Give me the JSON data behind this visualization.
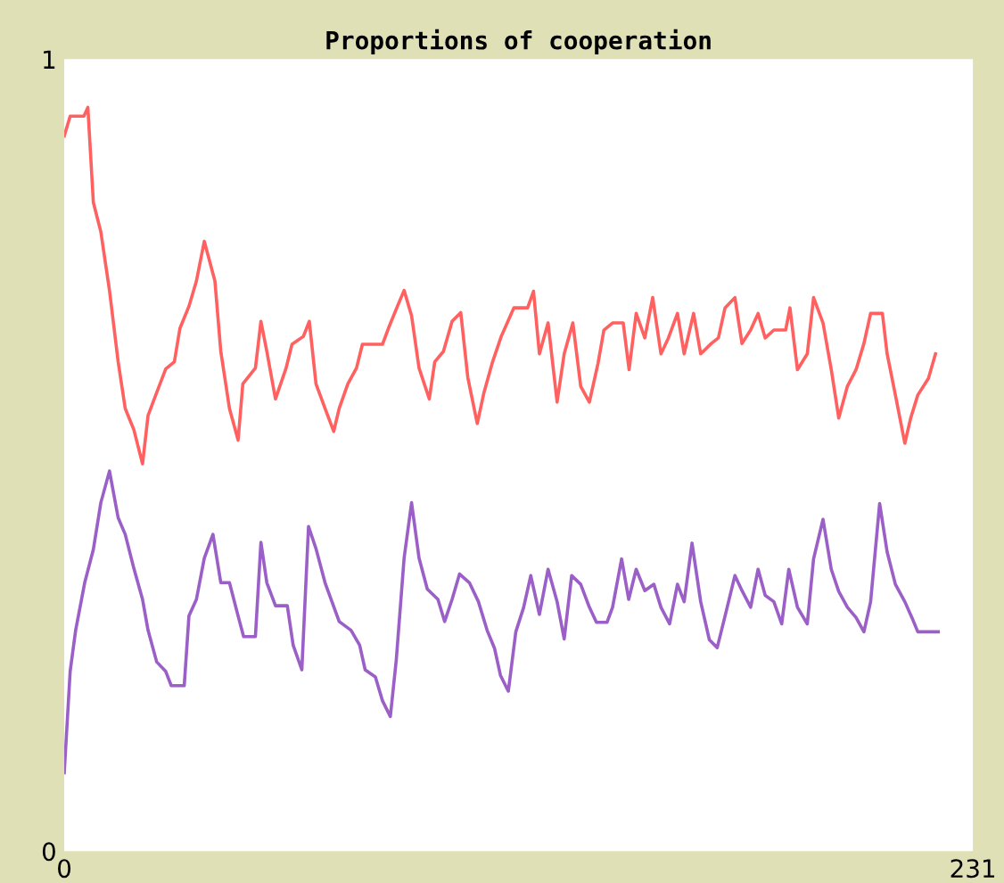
{
  "chart_data": {
    "type": "line",
    "title": "Proportions of cooperation",
    "xlim": [
      0,
      231
    ],
    "xticks": [
      0,
      231
    ],
    "ylim": [
      0,
      1
    ],
    "yticks": [
      0,
      1
    ],
    "grid": false,
    "marker": "none",
    "line_style": "solid",
    "series": [
      {
        "color": "#ff6060",
        "x": [
          0,
          1.5,
          5,
          6,
          7.4,
          9.3,
          11.5,
          13.7,
          15.5,
          17.7,
          19.9,
          21.3,
          23.5,
          25.8,
          28,
          29.4,
          31.7,
          33.6,
          35.6,
          38.3,
          39.8,
          42,
          44.2,
          45.4,
          48.6,
          50,
          51.5,
          53.7,
          56.4,
          57.9,
          60.8,
          62.3,
          64,
          66.3,
          68.5,
          69.9,
          72.1,
          74.3,
          75.8,
          80.9,
          82.4,
          84.7,
          86.4,
          88.3,
          90.2,
          92.8,
          94.2,
          96.4,
          98.6,
          100.8,
          102.6,
          105,
          106.7,
          108.9,
          111.1,
          114.3,
          117.8,
          119.3,
          120.8,
          123,
          125.3,
          127.1,
          129.3,
          131.3,
          133.5,
          135.7,
          137.2,
          139.4,
          142.1,
          143.6,
          145.4,
          147.6,
          149.6,
          151.7,
          153.6,
          155.9,
          157.6,
          160,
          161.8,
          164.5,
          166.3,
          168,
          170.5,
          172.3,
          174.5,
          176.4,
          178.2,
          180.4,
          183.4,
          184.5,
          186.4,
          188.9,
          190.5,
          192.9,
          195,
          196.9,
          199.1,
          201.3,
          203.3,
          205,
          208,
          209.2,
          211.3,
          213.7,
          215.2,
          217,
          219.7,
          221.5
        ],
        "values": [
          0.903,
          0.928,
          0.928,
          0.939,
          0.819,
          0.782,
          0.708,
          0.618,
          0.559,
          0.532,
          0.489,
          0.55,
          0.579,
          0.609,
          0.618,
          0.66,
          0.688,
          0.72,
          0.77,
          0.72,
          0.631,
          0.559,
          0.519,
          0.59,
          0.61,
          0.669,
          0.631,
          0.571,
          0.61,
          0.64,
          0.65,
          0.669,
          0.59,
          0.559,
          0.53,
          0.559,
          0.59,
          0.61,
          0.64,
          0.64,
          0.66,
          0.688,
          0.708,
          0.676,
          0.61,
          0.571,
          0.618,
          0.631,
          0.669,
          0.68,
          0.598,
          0.54,
          0.579,
          0.618,
          0.65,
          0.686,
          0.686,
          0.707,
          0.628,
          0.667,
          0.567,
          0.628,
          0.667,
          0.587,
          0.567,
          0.616,
          0.658,
          0.667,
          0.667,
          0.608,
          0.679,
          0.648,
          0.699,
          0.628,
          0.648,
          0.679,
          0.628,
          0.679,
          0.628,
          0.641,
          0.648,
          0.686,
          0.699,
          0.641,
          0.658,
          0.679,
          0.648,
          0.658,
          0.658,
          0.686,
          0.608,
          0.628,
          0.699,
          0.667,
          0.608,
          0.547,
          0.587,
          0.608,
          0.641,
          0.679,
          0.679,
          0.628,
          0.576,
          0.515,
          0.547,
          0.576,
          0.597,
          0.628
        ]
      },
      {
        "color": "#9b5fc8",
        "x": [
          0,
          1.5,
          2.9,
          5.2,
          7.4,
          9.3,
          11.5,
          13.7,
          15.5,
          17.7,
          19.9,
          21.3,
          23.5,
          25.8,
          27.2,
          30.5,
          31.7,
          33.6,
          35.6,
          37.8,
          39.8,
          42,
          44.2,
          45.6,
          48.6,
          50,
          51.5,
          53.7,
          56.7,
          58.2,
          60.4,
          62.1,
          64,
          66.3,
          69.9,
          72.9,
          75.1,
          76.5,
          79.1,
          80.9,
          82.9,
          84.4,
          86.4,
          88.3,
          90.2,
          92.3,
          95,
          96.7,
          98.6,
          100.5,
          103,
          105.3,
          107.5,
          109.4,
          110.9,
          112.9,
          114.8,
          116.8,
          118.6,
          120.8,
          123,
          125.3,
          127.1,
          129,
          131.3,
          133.5,
          135.3,
          138,
          139.4,
          141.7,
          143.5,
          145.4,
          147.6,
          149.9,
          151.7,
          153.9,
          155.9,
          157.6,
          159.6,
          161.8,
          164,
          166,
          168,
          170.5,
          172.3,
          174.5,
          176.4,
          178.2,
          180.4,
          182.4,
          184.2,
          186.4,
          188.9,
          190.5,
          192.9,
          195,
          196.9,
          199.1,
          201.3,
          203.3,
          205,
          207.3,
          209.2,
          211.3,
          213.7,
          215.5,
          217,
          222.2
        ],
        "values": [
          0.099,
          0.227,
          0.279,
          0.339,
          0.381,
          0.44,
          0.48,
          0.421,
          0.4,
          0.357,
          0.318,
          0.279,
          0.239,
          0.227,
          0.209,
          0.209,
          0.297,
          0.318,
          0.37,
          0.4,
          0.339,
          0.339,
          0.297,
          0.271,
          0.271,
          0.39,
          0.339,
          0.31,
          0.31,
          0.26,
          0.229,
          0.41,
          0.382,
          0.339,
          0.29,
          0.279,
          0.26,
          0.229,
          0.22,
          0.19,
          0.17,
          0.241,
          0.37,
          0.44,
          0.37,
          0.331,
          0.318,
          0.29,
          0.318,
          0.35,
          0.339,
          0.315,
          0.279,
          0.256,
          0.222,
          0.202,
          0.277,
          0.308,
          0.348,
          0.299,
          0.356,
          0.315,
          0.268,
          0.348,
          0.337,
          0.308,
          0.289,
          0.289,
          0.308,
          0.369,
          0.318,
          0.356,
          0.329,
          0.337,
          0.308,
          0.287,
          0.337,
          0.315,
          0.389,
          0.315,
          0.267,
          0.257,
          0.297,
          0.348,
          0.329,
          0.308,
          0.356,
          0.323,
          0.315,
          0.287,
          0.356,
          0.308,
          0.287,
          0.369,
          0.419,
          0.356,
          0.328,
          0.308,
          0.295,
          0.277,
          0.315,
          0.439,
          0.378,
          0.337,
          0.315,
          0.295,
          0.277,
          0.277
        ]
      }
    ]
  }
}
